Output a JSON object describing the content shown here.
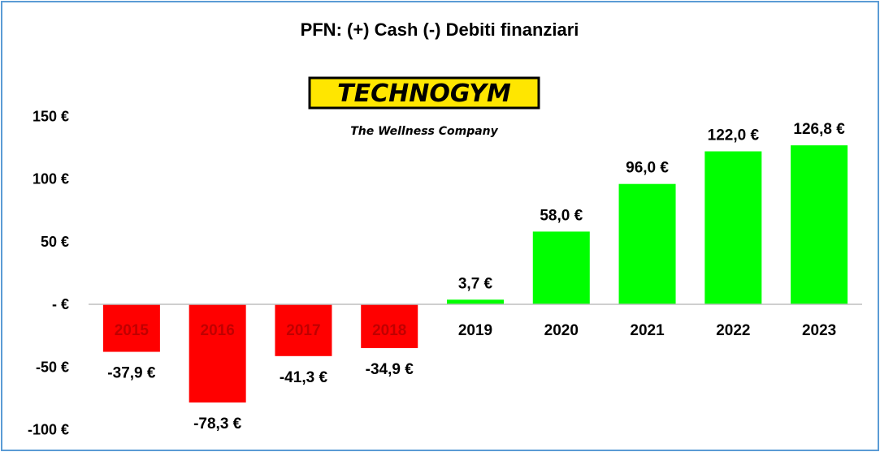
{
  "chart_data": {
    "type": "bar",
    "title": "PFN: (+) Cash (-) Debiti finanziari",
    "categories": [
      "2015",
      "2016",
      "2017",
      "2018",
      "2019",
      "2020",
      "2021",
      "2022",
      "2023"
    ],
    "values": [
      -37.9,
      -78.3,
      -41.3,
      -34.9,
      3.7,
      58.0,
      96.0,
      122.0,
      126.8
    ],
    "value_labels": [
      "-37,9 €",
      "-78,3 €",
      "-41,3 €",
      "-34,9 €",
      "3,7 €",
      "58,0 €",
      "96,0 €",
      "122,0 €",
      "126,8 €"
    ],
    "y_ticks": [
      150,
      100,
      50,
      0,
      -50,
      -100
    ],
    "y_tick_labels": [
      "150 €",
      "100 €",
      "50 €",
      "- €",
      "-50 €",
      "-100 €"
    ],
    "ylim": [
      -100,
      150
    ],
    "grid": false,
    "colors": {
      "negative": "#ff0000",
      "positive": "#00ff00",
      "axis": "#bfbfbf"
    }
  },
  "logo": {
    "brand": "TECHNOGYM",
    "tagline": "The Wellness Company",
    "colors": {
      "plate": "#ffe600",
      "text": "#000000"
    }
  }
}
